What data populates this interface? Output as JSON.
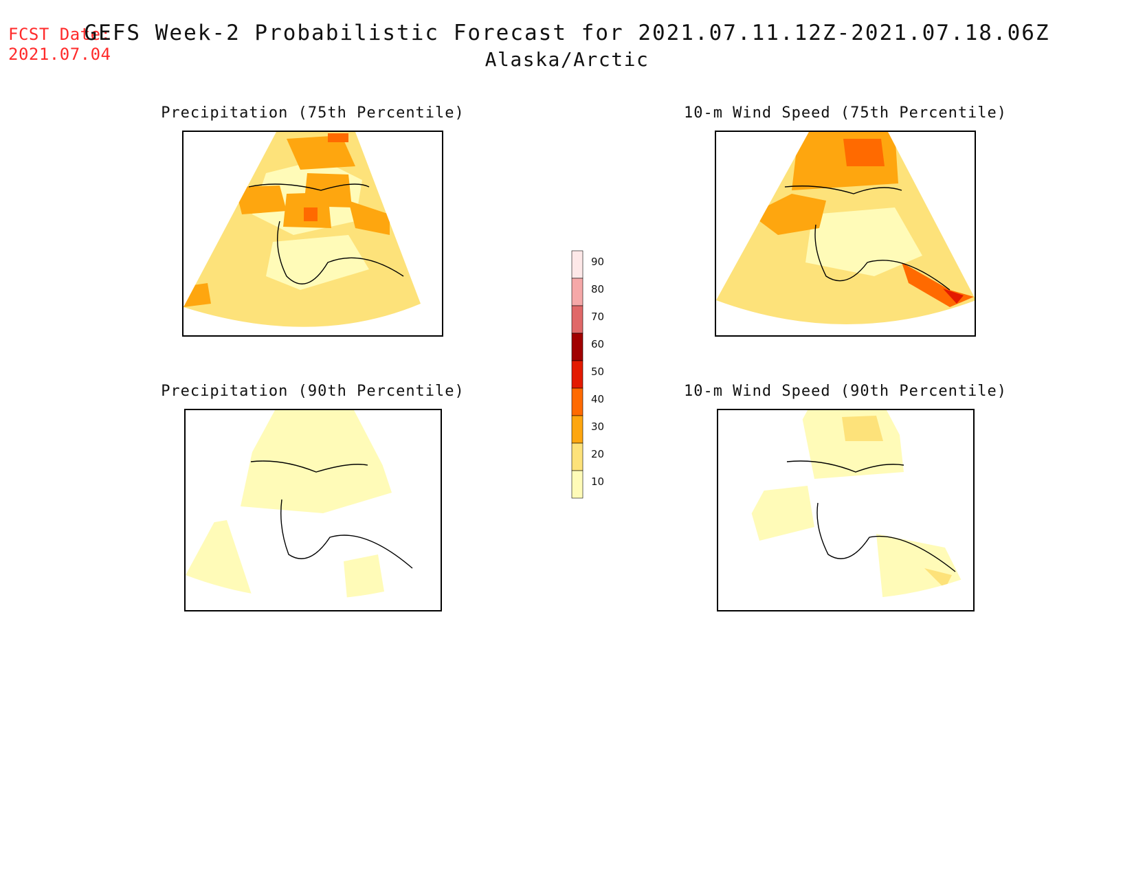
{
  "fcst_date": {
    "label": "FCST Date:",
    "value": "2021.07.04"
  },
  "title": {
    "main": "GEFS Week-2 Probabilistic Forecast for 2021.07.11.12Z-2021.07.18.06Z",
    "region": "Alaska/Arctic"
  },
  "panels": [
    {
      "title": "Precipitation (75th Percentile)"
    },
    {
      "title": "10-m Wind Speed (75th Percentile)"
    },
    {
      "title": "Precipitation (90th Percentile)"
    },
    {
      "title": "10-m Wind Speed (90th Percentile)"
    }
  ],
  "colorbar": {
    "levels": [
      "10",
      "20",
      "30",
      "40",
      "50",
      "60",
      "70",
      "80",
      "90"
    ],
    "colors": {
      "10-20": "#fffbb8",
      "20-30": "#fde27a",
      "30-40": "#fea60f",
      "40-50": "#ff6a00",
      "50-60": "#e31a00",
      "60-70": "#a10000",
      "70-80": "#e06868",
      "80-90": "#f5a8a8",
      "90+": "#fde8e8"
    }
  }
}
